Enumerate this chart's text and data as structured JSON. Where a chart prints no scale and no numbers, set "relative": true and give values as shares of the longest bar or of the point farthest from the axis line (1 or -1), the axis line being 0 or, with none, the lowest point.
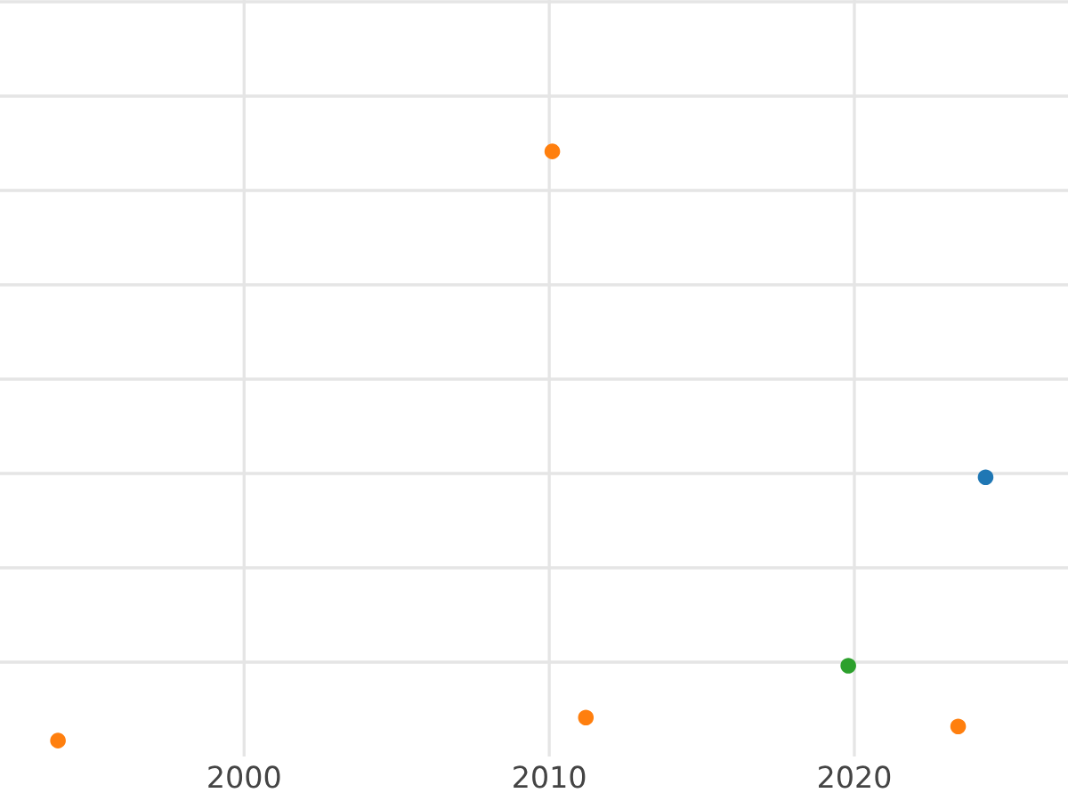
{
  "chart_data": {
    "type": "scatter",
    "relative": true,
    "grid": true,
    "marker": "circle",
    "legend": false,
    "xlim": [
      1992,
      2027
    ],
    "xticks": [
      2000,
      2010,
      2020
    ],
    "tick_labels": "x",
    "series": [
      {
        "color": "#ff7f0e",
        "x": [
          1993.9,
          2010.1,
          2011.2,
          2023.4
        ],
        "values": [
          0,
          1,
          0.039,
          0.024
        ]
      },
      {
        "color": "#2ca02c",
        "x": [
          2019.8
        ],
        "values": [
          0.127
        ]
      },
      {
        "color": "#1f77b4",
        "x": [
          2024.3
        ],
        "values": [
          0.447
        ]
      }
    ]
  }
}
